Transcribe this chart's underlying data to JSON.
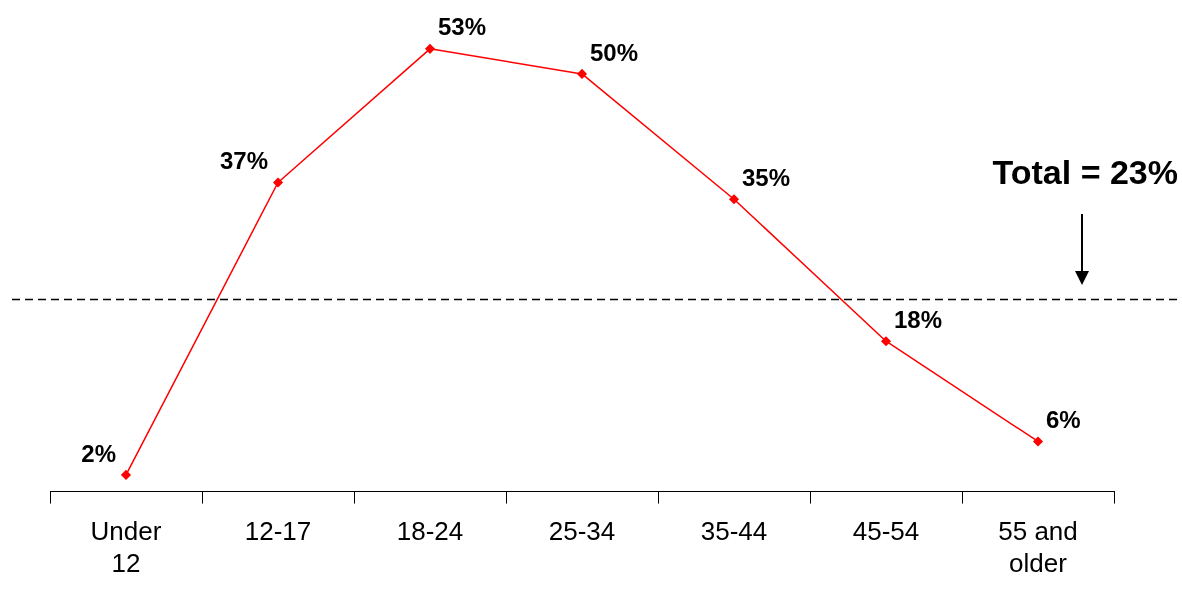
{
  "chart_data": {
    "type": "line",
    "categories": [
      "Under 12",
      "12-17",
      "18-24",
      "25-34",
      "35-44",
      "45-54",
      "55 and older"
    ],
    "series": [
      {
        "color": "#ff0000",
        "values": [
          2,
          37,
          53,
          50,
          35,
          18,
          6
        ],
        "value_labels": [
          "2%",
          "37%",
          "53%",
          "50%",
          "35%",
          "18%",
          "6%"
        ]
      }
    ],
    "marker": "diamond",
    "line_style": "solid",
    "grid": false,
    "legend": false,
    "tick_labels": "x",
    "ref_lines": [
      {
        "axis": "y",
        "value": 23,
        "label": "Total = 23%",
        "color": "#000000",
        "line_style": "dashed"
      }
    ]
  }
}
